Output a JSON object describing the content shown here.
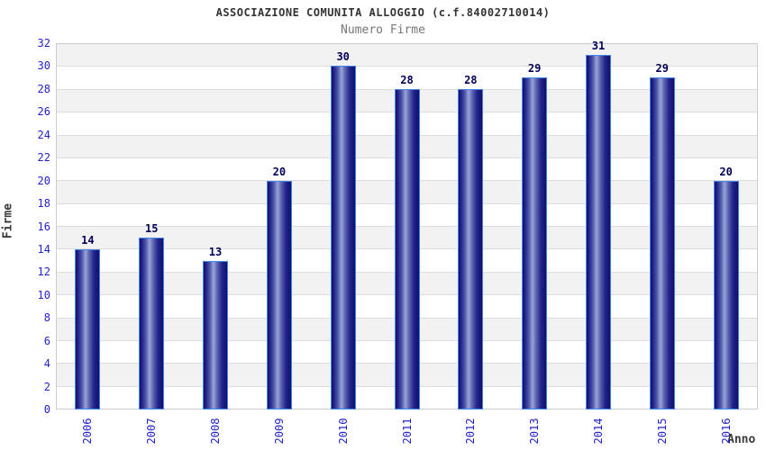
{
  "chart_data": {
    "type": "bar",
    "title": "ASSOCIAZIONE COMUNITA ALLOGGIO (c.f.84002710014)",
    "subtitle": "Numero Firme",
    "xlabel": "Anno",
    "ylabel": "Firme",
    "categories": [
      "2006",
      "2007",
      "2008",
      "2009",
      "2010",
      "2011",
      "2012",
      "2013",
      "2014",
      "2015",
      "2016"
    ],
    "values": [
      14,
      15,
      13,
      20,
      30,
      28,
      28,
      29,
      31,
      29,
      20
    ],
    "ylim": [
      0,
      32
    ],
    "y_ticks": [
      0,
      2,
      4,
      6,
      8,
      10,
      12,
      14,
      16,
      18,
      20,
      22,
      24,
      26,
      28,
      30,
      32
    ],
    "legend": "none",
    "grid": "horizontal alternating bands every 2 units",
    "colors": {
      "tick_text": "#2222cc",
      "value_label_text": "#00005a",
      "title_text": "#333333",
      "subtitle_text": "#777777",
      "axis_label_text": "#3a3a3a",
      "bar_dark": "#10106a",
      "bar_highlight": "#9aa4d8",
      "bar_border": "#4585e8",
      "band_gray": "#f2f2f2",
      "band_white": "#ffffff",
      "gridline": "#dddddd",
      "plot_border": "#cccccc"
    }
  }
}
